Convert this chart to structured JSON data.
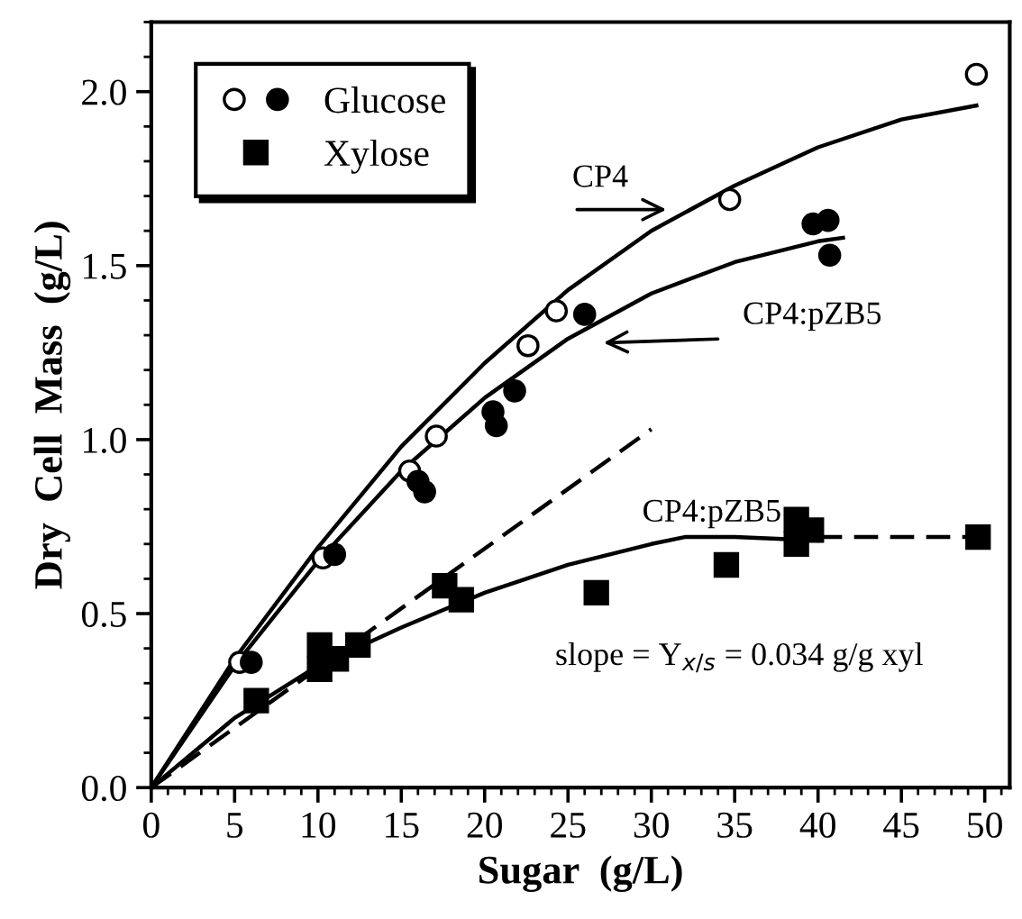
{
  "chart_data": {
    "type": "scatter",
    "xlabel": "Sugar  (g/L)",
    "ylabel": "Dry  Cell  Mass  (g/L)",
    "xlim": [
      0,
      51.5
    ],
    "ylim": [
      0,
      2.2
    ],
    "xticks": [
      0,
      5,
      10,
      15,
      20,
      25,
      30,
      35,
      40,
      45,
      50
    ],
    "yticks": [
      {
        "value": 0,
        "label": "0.0"
      },
      {
        "value": 0.5,
        "label": "0.5"
      },
      {
        "value": 1,
        "label": "1.0"
      },
      {
        "value": 1.5,
        "label": "1.5"
      },
      {
        "value": 2,
        "label": "2.0"
      }
    ],
    "grid": false,
    "legend": "top left",
    "series": [
      {
        "marker": "circle",
        "color": "#ffffff",
        "x": [
          5.3,
          10.3,
          15.5,
          17.1,
          22.6,
          24.3,
          34.7,
          49.5
        ],
        "values": [
          0.36,
          0.66,
          0.91,
          1.01,
          1.27,
          1.37,
          1.69,
          2.05
        ]
      },
      {
        "name": "Glucose",
        "marker": "circle",
        "color": "#000000",
        "x": [
          6,
          11,
          16.0,
          16.4,
          20.5,
          20.7,
          21.8,
          26,
          39.7,
          40.6,
          40.7
        ],
        "values": [
          0.36,
          0.67,
          0.88,
          0.85,
          1.08,
          1.04,
          1.14,
          1.36,
          1.62,
          1.63,
          1.53
        ]
      },
      {
        "name": "Xylose",
        "marker": "square",
        "color": "#000000",
        "x": [
          6.3,
          10.1,
          10.1,
          11.1,
          12.4,
          17.6,
          18.6,
          26.7,
          34.5,
          38.7,
          38.7,
          39.6,
          49.6
        ],
        "values": [
          0.25,
          0.34,
          0.41,
          0.37,
          0.41,
          0.58,
          0.54,
          0.56,
          0.64,
          0.7,
          0.77,
          0.74,
          0.72
        ]
      },
      {
        "type": "line",
        "marker": "none",
        "line_style": "solid",
        "color": "#000000",
        "x": [
          0,
          5,
          10,
          15,
          20,
          25,
          30,
          35,
          40,
          45,
          49.5
        ],
        "values": [
          0,
          0.37,
          0.69,
          0.98,
          1.22,
          1.43,
          1.6,
          1.73,
          1.84,
          1.92,
          1.96
        ]
      },
      {
        "type": "line",
        "marker": "none",
        "line_style": "solid",
        "color": "#000000",
        "x": [
          0,
          5,
          10,
          15,
          20,
          25,
          30,
          35,
          40,
          41.5
        ],
        "values": [
          0,
          0.35,
          0.65,
          0.91,
          1.12,
          1.29,
          1.42,
          1.51,
          1.57,
          1.58
        ]
      },
      {
        "type": "line",
        "marker": "none",
        "line_style": "solid",
        "color": "#000000",
        "x": [
          0,
          5,
          10,
          15,
          20,
          25,
          30,
          32,
          35,
          40
        ],
        "values": [
          0,
          0.2,
          0.35,
          0.46,
          0.56,
          0.64,
          0.7,
          0.72,
          0.72,
          0.71
        ]
      },
      {
        "type": "line",
        "marker": "none",
        "line_style": "dashed",
        "color": "#000000",
        "x": [
          40,
          50
        ],
        "values": [
          0.72,
          0.72
        ]
      },
      {
        "type": "line",
        "marker": "none",
        "line_style": "dashed",
        "color": "#000000",
        "x": [
          0,
          30
        ],
        "values": [
          0,
          1.03
        ]
      }
    ],
    "annotations": [
      "CP4",
      "CP4:pZB5",
      "CP4:pZB5",
      "slope = Y$_{x/s}$ = 0.034 g/g xyl"
    ]
  }
}
